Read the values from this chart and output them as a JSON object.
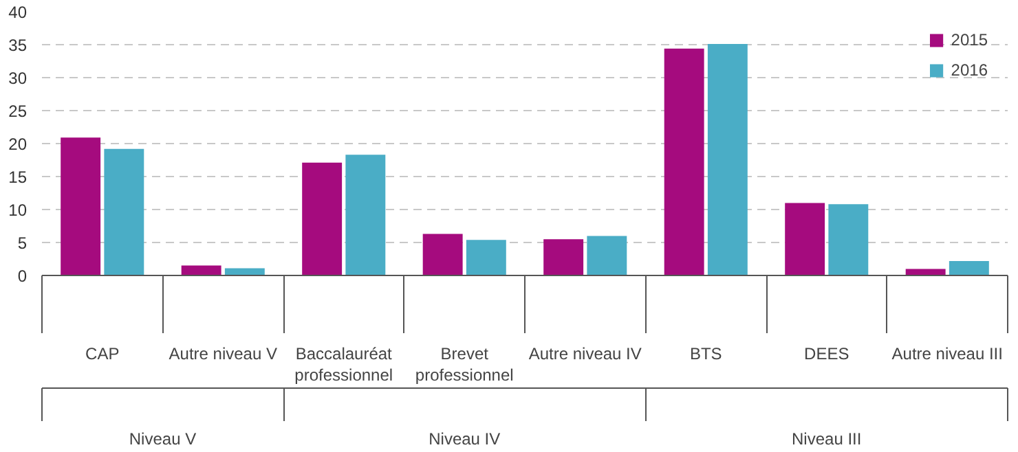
{
  "chart_data": {
    "type": "bar",
    "categories": [
      "CAP",
      "Autre niveau V",
      "Baccalauréat professionnel",
      "Brevet professionnel",
      "Autre niveau IV",
      "BTS",
      "DEES",
      "Autre niveau III"
    ],
    "series": [
      {
        "name": "2015",
        "color": "#a50b7e",
        "values": [
          20.9,
          1.5,
          17.1,
          6.3,
          5.5,
          34.4,
          11.0,
          1.0
        ]
      },
      {
        "name": "2016",
        "color": "#4aadc6",
        "values": [
          19.2,
          1.1,
          18.3,
          5.4,
          6.0,
          35.1,
          10.8,
          2.2
        ]
      }
    ],
    "annotations": [
      "Niveau V",
      "Niveau IV",
      "Niveau III"
    ],
    "ylim": [
      0,
      40
    ],
    "yticks": [
      0,
      5,
      10,
      15,
      20,
      25,
      30,
      35,
      40
    ],
    "grid": "y",
    "legend": "top right"
  }
}
